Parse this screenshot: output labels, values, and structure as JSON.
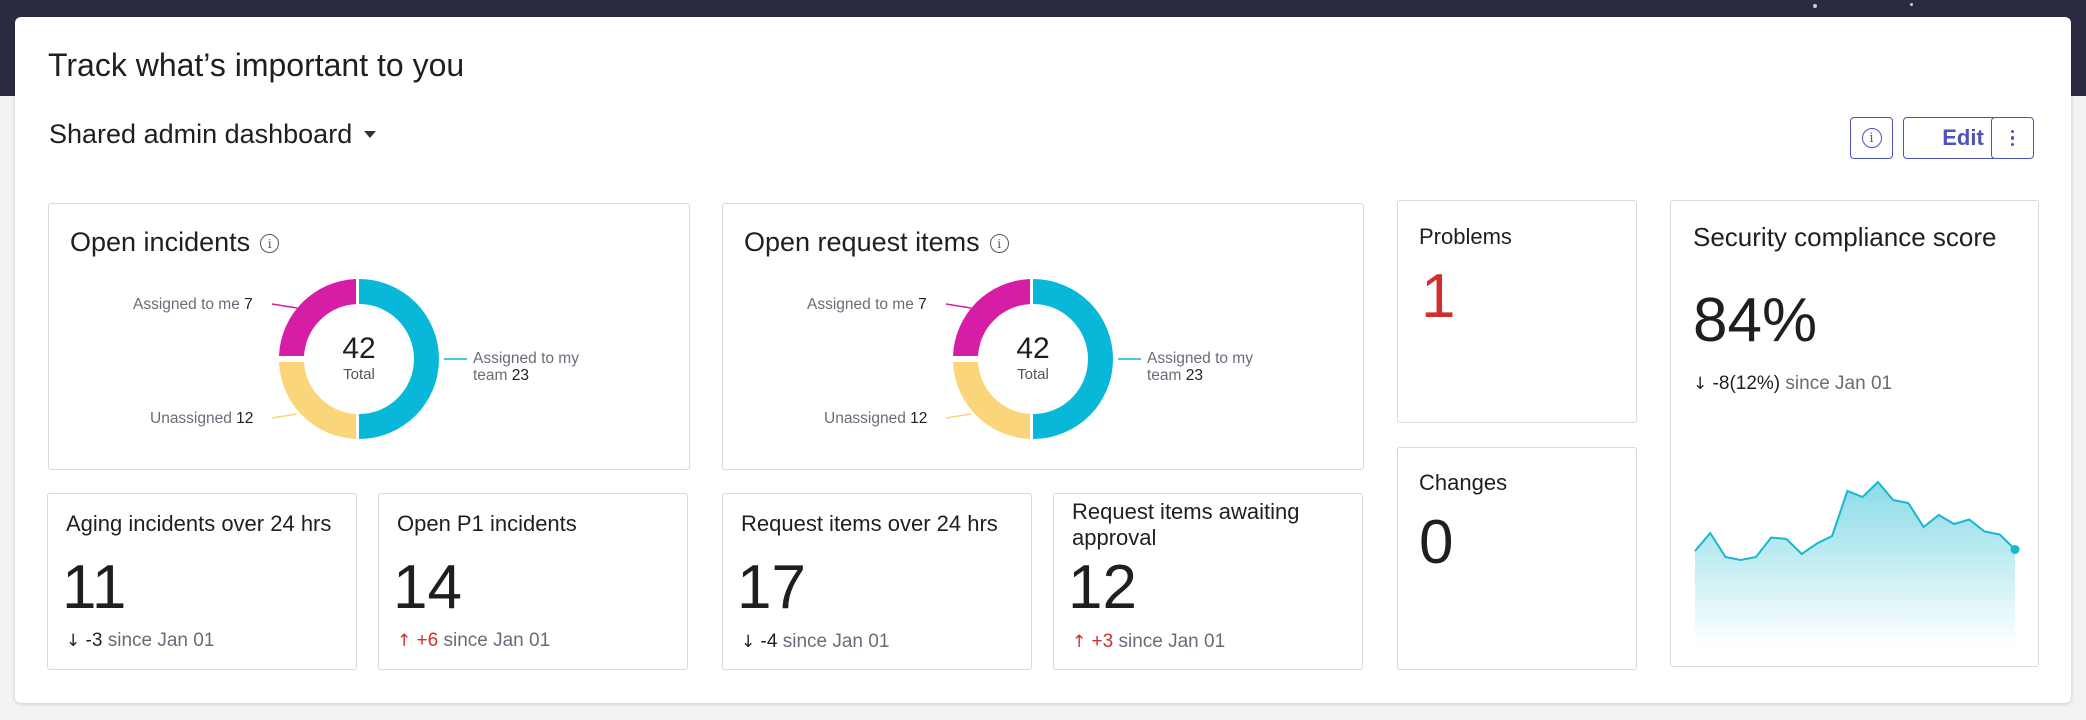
{
  "page": {
    "title": "Track what’s important to you",
    "dashboard_name": "Shared admin dashboard",
    "edit_label": "Edit"
  },
  "colors": {
    "accent": "#4f52bd",
    "donut_team": "#09b8d9",
    "donut_me": "#d51da5",
    "donut_unassigned": "#fad57a",
    "negative_red": "#d12f2f",
    "spark_line": "#16b7cf"
  },
  "open_incidents": {
    "title": "Open incidents",
    "total": "42",
    "total_label": "Total",
    "assigned_me_label": "Assigned to me",
    "assigned_me": "7",
    "assigned_team_label_1": "Assigned to my",
    "assigned_team_label_2": "team",
    "assigned_team": "23",
    "unassigned_label": "Unassigned",
    "unassigned": "12"
  },
  "open_request_items": {
    "title": "Open request items",
    "total": "42",
    "total_label": "Total",
    "assigned_me_label": "Assigned to me",
    "assigned_me": "7",
    "assigned_team_label_1": "Assigned to my",
    "assigned_team_label_2": "team",
    "assigned_team": "23",
    "unassigned_label": "Unassigned",
    "unassigned": "12"
  },
  "aging_incidents": {
    "title": "Aging incidents over 24 hrs",
    "value": "11",
    "arrow": "↓",
    "delta": "-3",
    "since": "since Jan 01"
  },
  "open_p1": {
    "title": "Open P1 incidents",
    "value": "14",
    "arrow": "↑",
    "delta": "+6",
    "since": "since Jan 01"
  },
  "request_items_24": {
    "title": "Request items over 24 hrs",
    "value": "17",
    "arrow": "↓",
    "delta": "-4",
    "since": "since Jan 01"
  },
  "request_awaiting": {
    "title_1": "Request items awaiting",
    "title_2": "approval",
    "value": "12",
    "arrow": "↑",
    "delta": "+3",
    "since": "since Jan 01"
  },
  "problems": {
    "title": "Problems",
    "value": "1"
  },
  "changes": {
    "title": "Changes",
    "value": "0"
  },
  "security": {
    "title": "Security compliance score",
    "value": "84%",
    "arrow": "↓",
    "delta": "-8",
    "delta_pct": "(12%)",
    "since": "since Jan 01",
    "sparkline": [
      40,
      52,
      36,
      34,
      36,
      49,
      48,
      38,
      45,
      50,
      80,
      76,
      86,
      74,
      72,
      56,
      64,
      58,
      61,
      53,
      51,
      41
    ]
  }
}
